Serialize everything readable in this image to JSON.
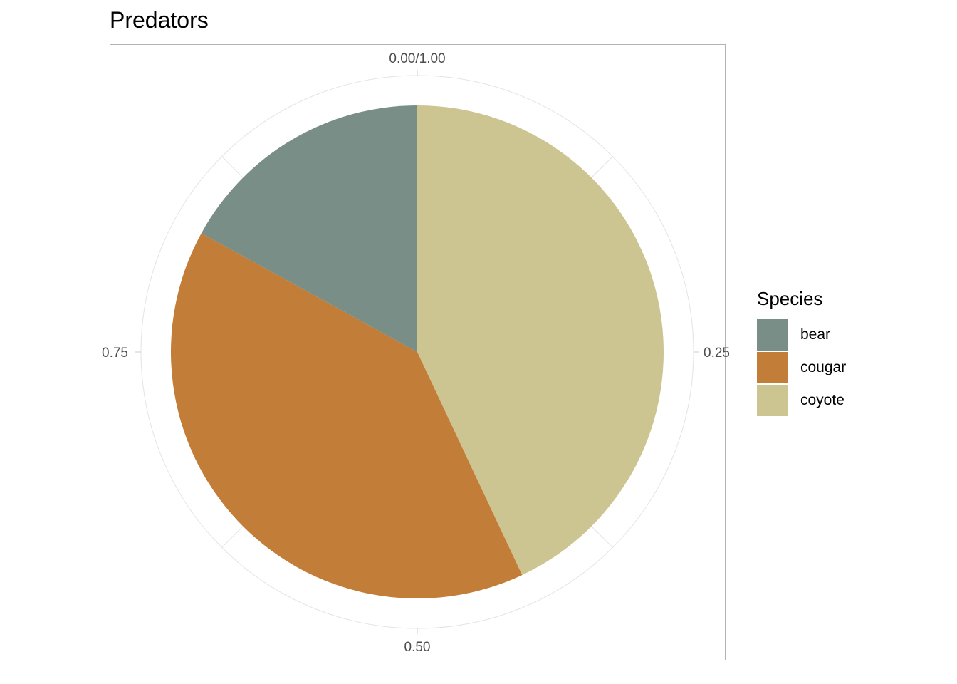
{
  "chart_data": {
    "type": "pie",
    "title": "Predators",
    "legend": {
      "title": "Species",
      "position": "right"
    },
    "theta_ticks": [
      {
        "value": 0,
        "label": "0.00/1.00"
      },
      {
        "value": 0.25,
        "label": "0.25"
      },
      {
        "value": 0.5,
        "label": "0.50"
      },
      {
        "value": 0.75,
        "label": "0.75"
      }
    ],
    "slices": [
      {
        "label": "coyote",
        "value": 0.43,
        "color": "#CDC591"
      },
      {
        "label": "cougar",
        "value": 0.4,
        "color": "#C27D38"
      },
      {
        "label": "bear",
        "value": 0.17,
        "color": "#798E87"
      }
    ],
    "legend_order": [
      "bear",
      "cougar",
      "coyote"
    ],
    "grid": true
  }
}
